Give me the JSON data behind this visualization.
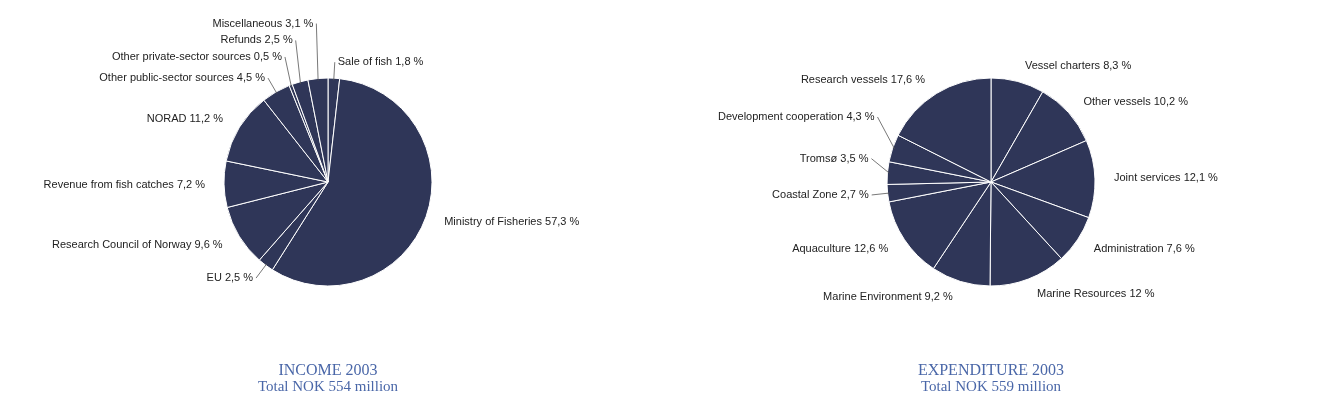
{
  "chart_data": [
    {
      "type": "pie",
      "title": "INCOME 2003",
      "subtitle": "Total NOK 554 million",
      "categories": [
        "Sale of fish",
        "Ministry of Fisheries",
        "EU",
        "Research Council of Norway",
        "Revenue from fish catches",
        "NORAD",
        "Other public-sector sources",
        "Other private-sector sources",
        "Refunds",
        "Miscellaneous"
      ],
      "values": [
        1.8,
        57.3,
        2.5,
        9.6,
        7.2,
        11.2,
        4.5,
        0.5,
        2.5,
        3.1
      ],
      "value_labels": [
        "1,8 %",
        "57,3 %",
        "2,5 %",
        "9,6 %",
        "7,2 %",
        "11,2 %",
        "4,5 %",
        "0,5 %",
        "2,5 %",
        "3,1 %"
      ],
      "colors": [
        "#2f3658",
        "#2f3658",
        "#2f3658",
        "#2f3658",
        "#2f3658",
        "#2f3658",
        "#2f3658",
        "#2f3658",
        "#2f3658",
        "#2f3658"
      ],
      "legend": false
    },
    {
      "type": "pie",
      "title": "EXPENDITURE 2003",
      "subtitle": "Total NOK 559 million",
      "categories": [
        "Vessel charters",
        "Other vessels",
        "Joint services",
        "Administration",
        "Marine Resources",
        "Marine Environment",
        "Aquaculture",
        "Coastal Zone",
        "Tromsø",
        "Development cooperation",
        "Research vessels"
      ],
      "values": [
        8.3,
        10.2,
        12.1,
        7.6,
        12,
        9.2,
        12.6,
        2.7,
        3.5,
        4.3,
        17.6
      ],
      "value_labels": [
        "8,3 %",
        "10,2 %",
        "12,1 %",
        "7,6 %",
        "12 %",
        "9,2 %",
        "12,6 %",
        "2,7 %",
        "3,5 %",
        "4,3 %",
        "17,6 %"
      ],
      "colors": [
        "#2f3658",
        "#2f3658",
        "#2f3658",
        "#2f3658",
        "#2f3658",
        "#2f3658",
        "#2f3658",
        "#2f3658",
        "#2f3658",
        "#2f3658",
        "#2f3658"
      ],
      "legend": false
    }
  ]
}
